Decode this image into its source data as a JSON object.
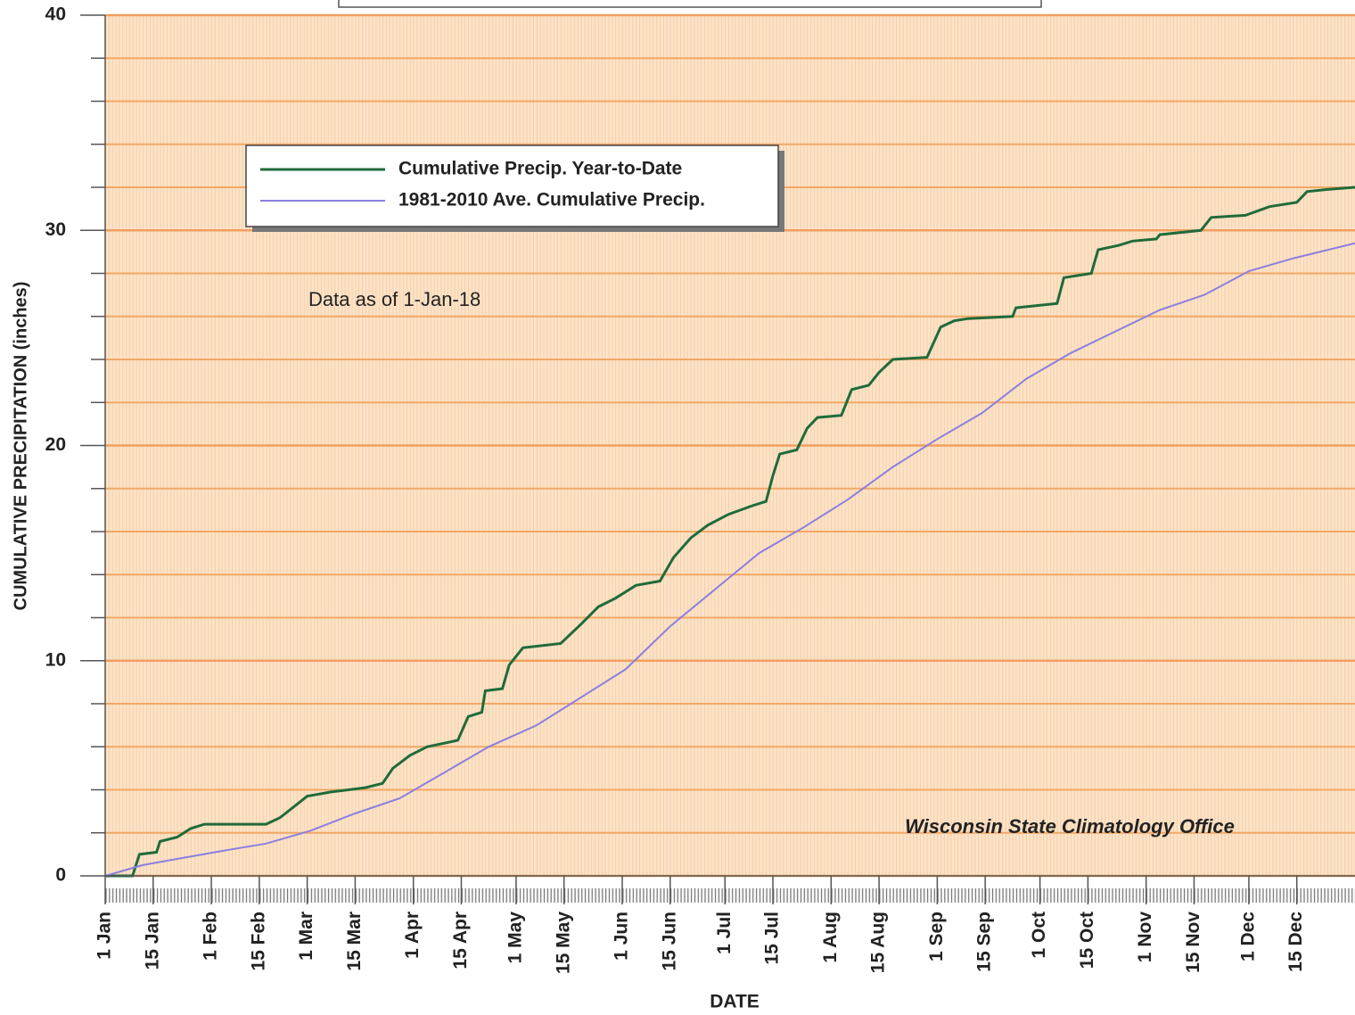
{
  "chart_data": {
    "type": "line",
    "y_label": "CUMULATIVE PRECIPITATION (inches)",
    "x_label": "DATE",
    "annotations": [
      "Data as of 1-Jan-18",
      "Wisconsin State Climatology Office"
    ],
    "xlim": [
      1,
      366
    ],
    "xticks": [
      {
        "value": 1,
        "label": "1 Jan"
      },
      {
        "value": 15,
        "label": "15 Jan"
      },
      {
        "value": 32,
        "label": "1 Feb"
      },
      {
        "value": 46,
        "label": "15 Feb"
      },
      {
        "value": 60,
        "label": "1 Mar"
      },
      {
        "value": 74,
        "label": "15 Mar"
      },
      {
        "value": 91,
        "label": "1 Apr"
      },
      {
        "value": 105,
        "label": "15 Apr"
      },
      {
        "value": 121,
        "label": "1 May"
      },
      {
        "value": 135,
        "label": "15 May"
      },
      {
        "value": 152,
        "label": "1 Jun"
      },
      {
        "value": 166,
        "label": "15 Jun"
      },
      {
        "value": 182,
        "label": "1 Jul"
      },
      {
        "value": 196,
        "label": "15 Jul"
      },
      {
        "value": 213,
        "label": "1 Aug"
      },
      {
        "value": 227,
        "label": "15 Aug"
      },
      {
        "value": 244,
        "label": "1 Sep"
      },
      {
        "value": 258,
        "label": "15 Sep"
      },
      {
        "value": 274,
        "label": "1 Oct"
      },
      {
        "value": 288,
        "label": "15 Oct"
      },
      {
        "value": 305,
        "label": "1 Nov"
      },
      {
        "value": 319,
        "label": "15 Nov"
      },
      {
        "value": 335,
        "label": "1 Dec"
      },
      {
        "value": 349,
        "label": "15 Dec"
      }
    ],
    "ylim": [
      0,
      40
    ],
    "yticks": [
      0,
      10,
      20,
      30,
      40
    ],
    "yticks_minor": [
      2,
      4,
      6,
      8,
      12,
      14,
      16,
      18,
      22,
      24,
      26,
      28,
      32,
      34,
      36,
      38
    ],
    "grid": true,
    "legend": "upper left",
    "series": [
      {
        "name": "Cumulative Precip. Year-to-Date",
        "color": "#1f6b3a",
        "x": [
          1,
          9,
          11,
          16,
          17,
          22,
          26,
          30,
          48,
          52,
          56,
          60,
          67,
          77,
          82,
          85,
          90,
          95,
          104,
          107,
          111,
          112,
          117,
          119,
          123,
          134,
          140,
          145,
          150,
          156,
          163,
          167,
          172,
          177,
          183,
          190,
          194,
          196,
          198,
          203,
          206,
          209,
          216,
          219,
          224,
          227,
          231,
          241,
          245,
          249,
          253,
          266,
          267,
          279,
          281,
          289,
          291,
          297,
          301,
          308,
          309,
          321,
          324,
          334,
          341,
          349,
          352,
          358,
          366
        ],
        "values": [
          0,
          0,
          1.0,
          1.1,
          1.6,
          1.8,
          2.2,
          2.4,
          2.4,
          2.7,
          3.2,
          3.7,
          3.9,
          4.1,
          4.3,
          5.0,
          5.6,
          6.0,
          6.3,
          7.4,
          7.6,
          8.6,
          8.7,
          9.8,
          10.6,
          10.8,
          11.7,
          12.5,
          12.9,
          13.5,
          13.7,
          14.8,
          15.7,
          16.3,
          16.8,
          17.2,
          17.4,
          18.6,
          19.6,
          19.8,
          20.8,
          21.3,
          21.4,
          22.6,
          22.8,
          23.4,
          24.0,
          24.1,
          25.5,
          25.8,
          25.9,
          26.0,
          26.4,
          26.6,
          27.8,
          28.0,
          29.1,
          29.3,
          29.5,
          29.6,
          29.8,
          30.0,
          30.6,
          30.7,
          31.1,
          31.3,
          31.8,
          31.9,
          32.0
        ]
      },
      {
        "name": "1981-2010 Ave. Cumulative Precip.",
        "color": "#8a7fe0",
        "x": [
          1,
          12,
          33,
          48,
          61,
          74,
          87,
          100,
          113,
          127,
          140,
          153,
          166,
          179,
          192,
          205,
          218,
          231,
          244,
          257,
          270,
          283,
          296,
          309,
          322,
          335,
          348,
          366
        ],
        "values": [
          0,
          0.5,
          1.1,
          1.5,
          2.1,
          2.9,
          3.6,
          4.8,
          6.0,
          7.0,
          8.3,
          9.6,
          11.6,
          13.3,
          15.0,
          16.2,
          17.5,
          19.0,
          20.3,
          21.5,
          23.1,
          24.3,
          25.3,
          26.3,
          27.0,
          28.1,
          28.7,
          29.4
        ]
      }
    ]
  }
}
